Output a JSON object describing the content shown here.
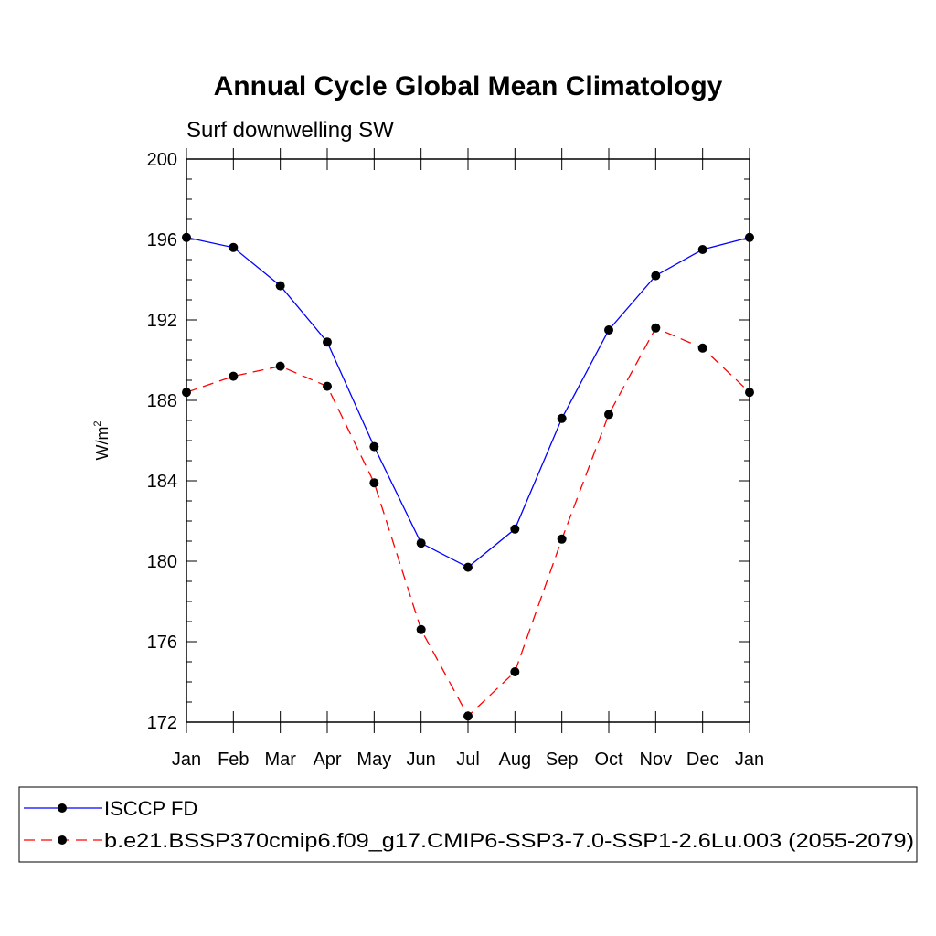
{
  "chart_data": {
    "type": "line",
    "title": "Annual Cycle Global Mean Climatology",
    "subtitle": "Surf downwelling SW",
    "xlabel": "",
    "ylabel": "W/m",
    "ylabel_superscript": "2",
    "categories": [
      "Jan",
      "Feb",
      "Mar",
      "Apr",
      "May",
      "Jun",
      "Jul",
      "Aug",
      "Sep",
      "Oct",
      "Nov",
      "Dec",
      "Jan"
    ],
    "ylim": [
      172,
      200
    ],
    "yticks": [
      172,
      176,
      180,
      184,
      188,
      192,
      196,
      200
    ],
    "ytick_labels": [
      "172",
      "176",
      "180",
      "184",
      "188",
      "192",
      "196",
      "200"
    ],
    "grid": false,
    "legend_position": "bottom",
    "series": [
      {
        "name": "ISCCP FD",
        "color": "#0000ff",
        "dash": "solid",
        "marker": "filled-circle",
        "values": [
          196.1,
          195.6,
          193.7,
          190.9,
          185.7,
          180.9,
          179.7,
          181.6,
          187.1,
          191.5,
          194.2,
          195.5,
          196.1
        ]
      },
      {
        "name": "b.e21.BSSP370cmip6.f09_g17.CMIP6-SSP3-7.0-SSP1-2.6Lu.003 (2055-2079)",
        "color": "#ff0000",
        "dash": "dashed",
        "marker": "filled-circle",
        "values": [
          188.4,
          189.2,
          189.7,
          188.7,
          183.9,
          176.6,
          172.3,
          174.5,
          181.1,
          187.3,
          191.6,
          190.6,
          188.4
        ]
      }
    ]
  }
}
